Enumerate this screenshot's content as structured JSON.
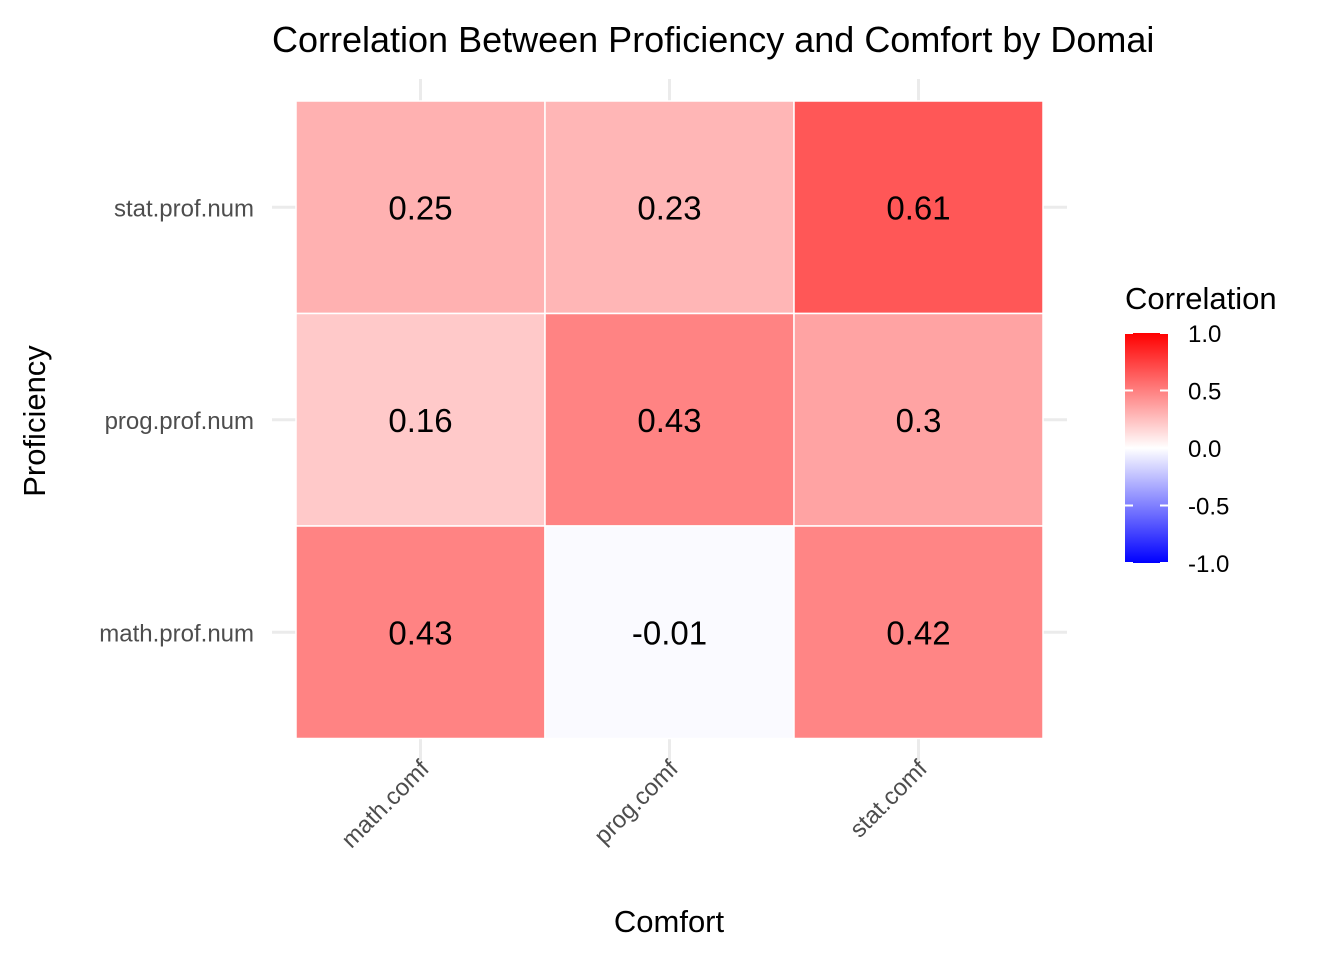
{
  "chart_data": {
    "type": "heatmap",
    "title": "Correlation Between Proficiency and Comfort by Domai",
    "xlabel": "Comfort",
    "ylabel": "Proficiency",
    "x_categories": [
      "math.comf",
      "prog.comf",
      "stat.comf"
    ],
    "y_categories": [
      "math.prof.num",
      "prog.prof.num",
      "stat.prof.num"
    ],
    "cells": [
      {
        "x": "math.comf",
        "y": "stat.prof.num",
        "value": 0.25,
        "label": "0.25"
      },
      {
        "x": "prog.comf",
        "y": "stat.prof.num",
        "value": 0.23,
        "label": "0.23"
      },
      {
        "x": "stat.comf",
        "y": "stat.prof.num",
        "value": 0.61,
        "label": "0.61"
      },
      {
        "x": "math.comf",
        "y": "prog.prof.num",
        "value": 0.16,
        "label": "0.16"
      },
      {
        "x": "prog.comf",
        "y": "prog.prof.num",
        "value": 0.43,
        "label": "0.43"
      },
      {
        "x": "stat.comf",
        "y": "prog.prof.num",
        "value": 0.3,
        "label": "0.3"
      },
      {
        "x": "math.comf",
        "y": "math.prof.num",
        "value": 0.43,
        "label": "0.43"
      },
      {
        "x": "prog.comf",
        "y": "math.prof.num",
        "value": -0.01,
        "label": "-0.01"
      },
      {
        "x": "stat.comf",
        "y": "math.prof.num",
        "value": 0.42,
        "label": "0.42"
      }
    ],
    "legend": {
      "title": "Correlation",
      "position": "right",
      "ticks": [
        {
          "value": 1.0,
          "label": "1.0"
        },
        {
          "value": 0.5,
          "label": "0.5"
        },
        {
          "value": 0.0,
          "label": "0.0"
        },
        {
          "value": -0.5,
          "label": "-0.5"
        },
        {
          "value": -1.0,
          "label": "-1.0"
        }
      ],
      "limits": [
        -1,
        1
      ],
      "low_color": "#0000ff",
      "mid_color": "#ffffff",
      "high_color": "#ff0000"
    },
    "grid": true
  }
}
